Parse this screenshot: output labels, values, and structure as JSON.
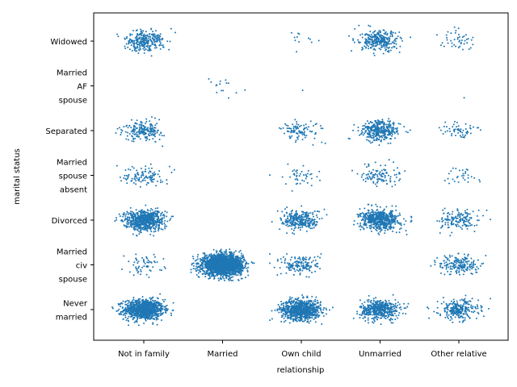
{
  "chart_data": {
    "type": "scatter",
    "subtype": "categorical strip plot with jitter",
    "xlabel": "relationship",
    "ylabel": "marital status",
    "x_categories": [
      "Not in family",
      "Married",
      "Own child",
      "Unmarried",
      "Other relative"
    ],
    "y_categories": [
      {
        "id": "never-married",
        "lines": [
          "Never",
          "married"
        ]
      },
      {
        "id": "married-civ-spouse",
        "lines": [
          "Married",
          "civ",
          "spouse"
        ]
      },
      {
        "id": "divorced",
        "lines": [
          "Divorced"
        ]
      },
      {
        "id": "married-spouse-absent",
        "lines": [
          "Married",
          "spouse",
          "absent"
        ]
      },
      {
        "id": "separated",
        "lines": [
          "Separated"
        ]
      },
      {
        "id": "married-af-spouse",
        "lines": [
          "Married",
          "AF",
          "spouse"
        ]
      },
      {
        "id": "widowed",
        "lines": [
          "Widowed"
        ]
      }
    ],
    "approx_point_counts": [
      [
        1000,
        0,
        820,
        480,
        260
      ],
      [
        60,
        2200,
        160,
        0,
        190
      ],
      [
        700,
        0,
        280,
        560,
        150
      ],
      [
        110,
        0,
        45,
        110,
        30
      ],
      [
        200,
        0,
        95,
        340,
        55
      ],
      [
        0,
        15,
        1,
        0,
        1
      ],
      [
        280,
        0,
        12,
        300,
        45
      ]
    ],
    "jitter_spread": {
      "x": 0.25,
      "y": 0.25
    },
    "marker_color": "#1f77b4",
    "grid": false,
    "legend": "none"
  }
}
